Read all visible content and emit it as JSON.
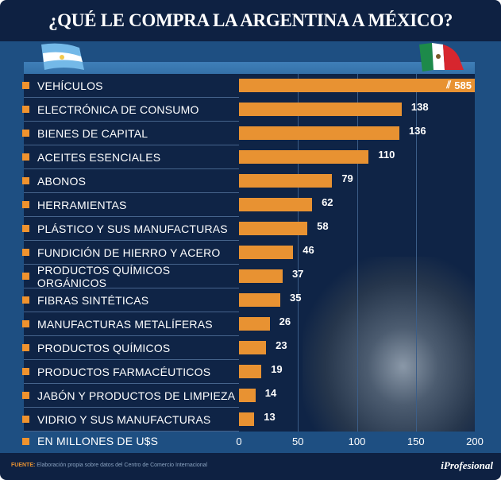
{
  "title": "¿QUÉ LE COMPRA LA ARGENTINA A MÉXICO?",
  "chart_data": {
    "type": "bar",
    "orientation": "horizontal",
    "categories": [
      "VEHÍCULOS",
      "ELECTRÓNICA DE CONSUMO",
      "BIENES DE CAPITAL",
      "ACEITES ESENCIALES",
      "ABONOS",
      "HERRAMIENTAS",
      "PLÁSTICO Y SUS MANUFACTURAS",
      "FUNDICIÓN DE HIERRO Y ACERO",
      "PRODUCTOS QUÍMICOS ORGÁNICOS",
      "FIBRAS SINTÉTICAS",
      "MANUFACTURAS METALÍFERAS",
      "PRODUCTOS QUÍMICOS",
      "PRODUCTOS FARMACÉUTICOS",
      "JABÓN Y PRODUCTOS DE LIMPIEZA",
      "VIDRIO Y SUS MANUFACTURAS"
    ],
    "values": [
      585,
      138,
      136,
      110,
      79,
      62,
      58,
      46,
      37,
      35,
      26,
      23,
      19,
      14,
      13
    ],
    "value_labels": [
      "585",
      "138",
      "136",
      "110",
      "79",
      "62",
      "58",
      "46",
      "37",
      "35",
      "26",
      "23",
      "19",
      "14",
      "13"
    ],
    "xlim": [
      0,
      200
    ],
    "xticks": [
      "0",
      "50",
      "100",
      "150",
      "200"
    ],
    "xlabel": "EN MILLONES DE U$S",
    "axis_break_on": "VEHÍCULOS",
    "grid": true,
    "bar_color": "#e89232"
  },
  "footer": {
    "source_label": "FUENTE:",
    "source_text": "Elaboración propia sobre datos del Centro de Comercio Internacional",
    "brand": "iProfesional"
  }
}
